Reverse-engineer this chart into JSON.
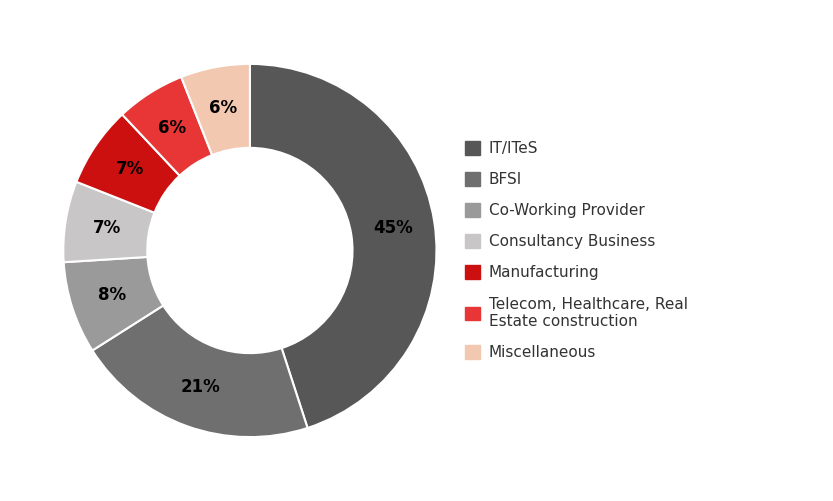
{
  "labels": [
    "IT/ITeS",
    "BFSI",
    "Co-Working Provider",
    "Consultancy Business",
    "Manufacturing",
    "Telecom, Healthcare, Real\nEstate construction",
    "Miscellaneous"
  ],
  "values": [
    45,
    21,
    8,
    7,
    7,
    6,
    6
  ],
  "colors": [
    "#575757",
    "#706f6f",
    "#9a9a9a",
    "#c8c6c6",
    "#cc1010",
    "#e83535",
    "#f2c9b0"
  ],
  "pct_labels": [
    "45%",
    "21%",
    "8%",
    "7%",
    "7%",
    "6%",
    "6%"
  ],
  "legend_labels": [
    "IT/ITeS",
    "BFSI",
    "Co-Working Provider",
    "Consultancy Business",
    "Manufacturing",
    "Telecom, Healthcare, Real\nEstate construction",
    "Miscellaneous"
  ],
  "background_color": "#ffffff",
  "wedge_linewidth": 1.5,
  "wedge_edgecolor": "#ffffff",
  "donut_width": 0.45,
  "start_angle": 90,
  "label_fontsize": 12,
  "legend_fontsize": 11
}
